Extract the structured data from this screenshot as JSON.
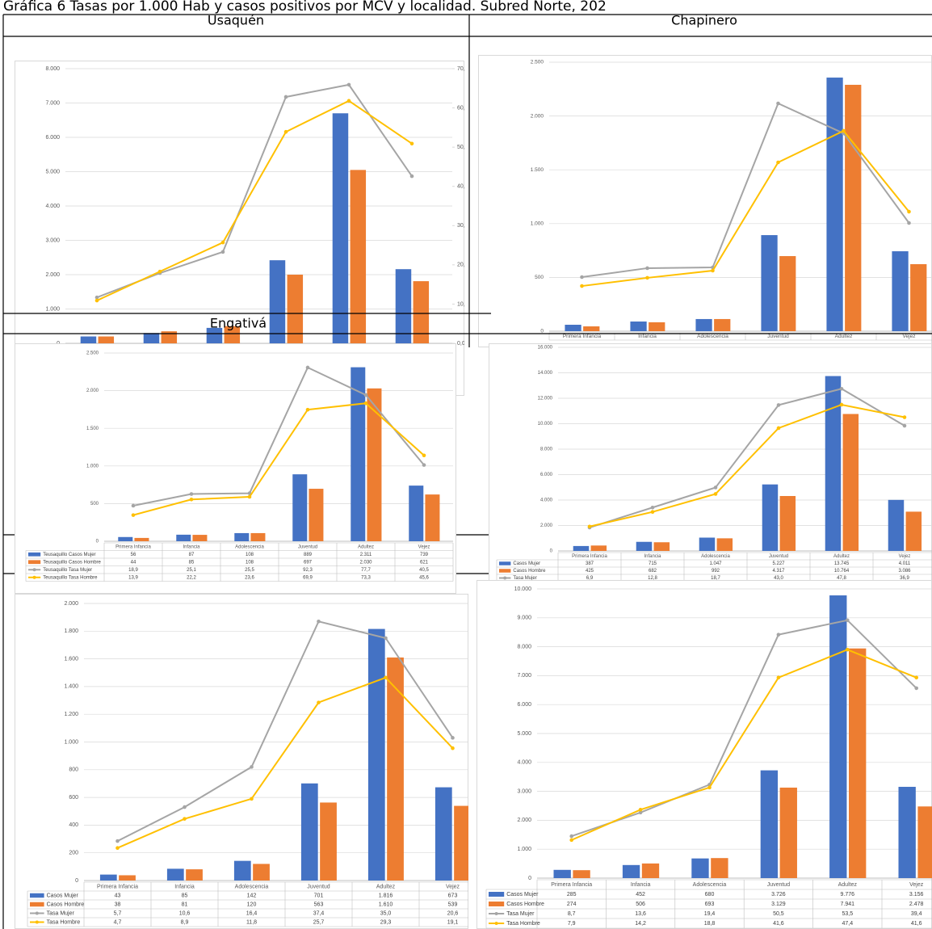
{
  "title": "Gráfica 6 Tasas por 1.000 Hab y casos positivos por MCV y localidad. Subred Norte, 202",
  "headers": {
    "usaquen": "Usaquén",
    "chapinero": "Chapinero",
    "engativa": "Engativá"
  },
  "chart_data": [
    {
      "type": "combo",
      "grid": true,
      "ylim": [
        0,
        8000
      ],
      "yticks": [
        0,
        {
          "value": 1000,
          "label": "1.000"
        },
        {
          "value": 2000,
          "label": "2.000"
        },
        {
          "value": 3000,
          "label": "3.000"
        },
        {
          "value": 4000,
          "label": "4.000"
        },
        {
          "value": 5000,
          "label": "5.000"
        },
        {
          "value": 6000,
          "label": "6.000"
        },
        {
          "value": 7000,
          "label": "7.000"
        },
        {
          "value": 8000,
          "label": "8.000"
        }
      ],
      "y2lim": [
        0,
        70
      ],
      "y2ticks": [
        {
          "value": 0,
          "label": "0,0"
        },
        {
          "value": 10,
          "label": "10,0"
        },
        {
          "value": 20,
          "label": "20,0"
        },
        {
          "value": 30,
          "label": "30,0"
        },
        {
          "value": 40,
          "label": "40,0"
        },
        {
          "value": 50,
          "label": "50,0"
        },
        {
          "value": 60,
          "label": "60,0"
        },
        {
          "value": 70,
          "label": "70,0"
        }
      ],
      "series": [
        {
          "type": "bar",
          "color": "#4472c4",
          "values": [
            200,
            300,
            450,
            2420,
            6700,
            2160
          ]
        },
        {
          "type": "bar",
          "color": "#ed7d31",
          "values": [
            200,
            350,
            500,
            2000,
            5050,
            1810
          ]
        },
        {
          "type": "line",
          "color": "#a5a5a5",
          "axis": "y2",
          "values": [
            11.7,
            17.9,
            23.3,
            62.8,
            65.9,
            42.6
          ]
        },
        {
          "type": "line",
          "color": "#ffc000",
          "axis": "y2",
          "values": [
            10.9,
            18.3,
            25.7,
            53.9,
            61.8,
            50.9
          ]
        }
      ]
    },
    {
      "type": "combo",
      "grid": true,
      "ylim": [
        0,
        2500
      ],
      "yticks": [
        0,
        500,
        {
          "value": 1000,
          "label": "1.000"
        },
        {
          "value": 1500,
          "label": "1.500"
        },
        {
          "value": 2000,
          "label": "2.000"
        },
        {
          "value": 2500,
          "label": "2.500"
        }
      ],
      "categories": [
        "Primera Infancia",
        "Infancia",
        "Adolescencia",
        "Juventud",
        "Adultez",
        "Vejez"
      ],
      "series": [
        {
          "type": "bar",
          "color": "#4472c4",
          "values": [
            60,
            90,
            113,
            893,
            2357,
            743
          ]
        },
        {
          "type": "bar",
          "color": "#ed7d31",
          "values": [
            45,
            83,
            113,
            698,
            2290,
            623
          ]
        },
        {
          "type": "line",
          "color": "#a5a5a5",
          "values": [
            503,
            586,
            593,
            2117,
            1839,
            1006
          ]
        },
        {
          "type": "line",
          "color": "#ffc000",
          "values": [
            420,
            496,
            563,
            1569,
            1862,
            1111
          ]
        }
      ]
    },
    {
      "type": "combo",
      "grid": true,
      "data_table": true,
      "ylim": [
        0,
        2500
      ],
      "y2lim": [
        0,
        100
      ],
      "yticks": [
        0,
        500,
        {
          "value": 1000,
          "label": "1.000"
        },
        {
          "value": 1500,
          "label": "1.500"
        },
        {
          "value": 2000,
          "label": "2.000"
        },
        {
          "value": 2500,
          "label": "2.500"
        }
      ],
      "categories": [
        "Primera Infancia",
        "Infancia",
        "Adolescencia",
        "Juventud",
        "Adultez",
        "Vejez"
      ],
      "series": [
        {
          "name": "Teusaquillo Casos Mujer",
          "type": "bar",
          "color": "#4472c4",
          "values": [
            56,
            87,
            108,
            889,
            2311,
            739
          ],
          "value_labels": [
            "56",
            "87",
            "108",
            "889",
            "2.311",
            "739"
          ]
        },
        {
          "name": "Teusaquillo Casos Hombre",
          "type": "bar",
          "color": "#ed7d31",
          "values": [
            44,
            85,
            108,
            697,
            2030,
            621
          ],
          "value_labels": [
            "44",
            "85",
            "108",
            "697",
            "2.030",
            "621"
          ]
        },
        {
          "name": "Teusaquillo Tasa Mujer",
          "type": "line",
          "axis": "y2",
          "color": "#a5a5a5",
          "values": [
            18.9,
            25.1,
            25.5,
            92.3,
            77.7,
            40.5
          ],
          "value_labels": [
            "18,9",
            "25,1",
            "25,5",
            "92,3",
            "77,7",
            "40,5"
          ]
        },
        {
          "name": "Teusaquillo Tasa Hombre",
          "type": "line",
          "axis": "y2",
          "color": "#ffc000",
          "values": [
            13.9,
            22.2,
            23.6,
            69.9,
            73.3,
            45.6
          ],
          "value_labels": [
            "13,9",
            "22,2",
            "23,6",
            "69,9",
            "73,3",
            "45,6"
          ]
        }
      ]
    },
    {
      "type": "combo",
      "grid": true,
      "data_table": true,
      "ylim": [
        0,
        16000
      ],
      "y2lim": [
        0,
        60
      ],
      "yticks": [
        0,
        {
          "value": 2000,
          "label": "2.000"
        },
        {
          "value": 4000,
          "label": "4.000"
        },
        {
          "value": 6000,
          "label": "6.000"
        },
        {
          "value": 8000,
          "label": "8.000"
        },
        {
          "value": 10000,
          "label": "10.000"
        },
        {
          "value": 12000,
          "label": "12.000"
        },
        {
          "value": 14000,
          "label": "14.000"
        },
        {
          "value": 16000,
          "label": "16.000"
        }
      ],
      "categories": [
        "Primera Infancia",
        "Infancia",
        "Adolescencia",
        "Juventud",
        "Adultez",
        "Vejez"
      ],
      "series": [
        {
          "name": "Casos Mujer",
          "type": "bar",
          "color": "#4472c4",
          "values": [
            387,
            715,
            1047,
            5227,
            13745,
            4011
          ],
          "value_labels": [
            "387",
            "715",
            "1.047",
            "5.227",
            "13.745",
            "4.011"
          ]
        },
        {
          "name": "Casos Hombre",
          "type": "bar",
          "color": "#ed7d31",
          "values": [
            425,
            682,
            992,
            4317,
            10764,
            3086
          ],
          "value_labels": [
            "425",
            "682",
            "992",
            "4.317",
            "10.764",
            "3.086"
          ]
        },
        {
          "name": "Tasa Mujer",
          "type": "line",
          "axis": "y2",
          "color": "#a5a5a5",
          "values": [
            6.9,
            12.8,
            18.7,
            43.0,
            47.8,
            36.9
          ],
          "value_labels": [
            "6,9",
            "12,8",
            "18,7",
            "43,0",
            "47,8",
            "36,9"
          ]
        },
        {
          "name": "Tasa Hombre",
          "type": "line",
          "axis": "y2",
          "color": "#ffc000",
          "values": [
            7.2,
            11.5,
            16.8,
            36.2,
            43.1,
            39.4
          ],
          "value_labels": [
            "7,2",
            "11,5",
            "16,8",
            "36,2",
            "43,1",
            "39,4"
          ]
        }
      ]
    },
    {
      "type": "combo",
      "grid": true,
      "data_table": true,
      "ylim": [
        0,
        2000
      ],
      "y2lim": [
        0,
        40
      ],
      "yticks": [
        0,
        200,
        400,
        600,
        800,
        {
          "value": 1000,
          "label": "1.000"
        },
        {
          "value": 1200,
          "label": "1.200"
        },
        {
          "value": 1400,
          "label": "1.400"
        },
        {
          "value": 1600,
          "label": "1.600"
        },
        {
          "value": 1800,
          "label": "1.800"
        },
        {
          "value": 2000,
          "label": "2.000"
        }
      ],
      "categories": [
        "Primera Infancia",
        "Infancia",
        "Adolescencia",
        "Juventud",
        "Adultez",
        "Vejez"
      ],
      "series": [
        {
          "name": "Casos Mujer",
          "type": "bar",
          "color": "#4472c4",
          "values": [
            43,
            85,
            142,
            701,
            1816,
            673
          ],
          "value_labels": [
            "43",
            "85",
            "142",
            "701",
            "1.816",
            "673"
          ]
        },
        {
          "name": "Casos Hombre",
          "type": "bar",
          "color": "#ed7d31",
          "values": [
            38,
            81,
            120,
            563,
            1610,
            539
          ],
          "value_labels": [
            "38",
            "81",
            "120",
            "563",
            "1.610",
            "539"
          ]
        },
        {
          "name": "Tasa Mujer",
          "type": "line",
          "axis": "y2",
          "color": "#a5a5a5",
          "values": [
            5.7,
            10.6,
            16.4,
            37.4,
            35.0,
            20.6
          ],
          "value_labels": [
            "5,7",
            "10,6",
            "16,4",
            "37,4",
            "35,0",
            "20,6"
          ]
        },
        {
          "name": "Tasa Hombre",
          "type": "line",
          "axis": "y2",
          "color": "#ffc000",
          "values": [
            4.7,
            8.9,
            11.8,
            25.7,
            29.3,
            19.1
          ],
          "value_labels": [
            "4,7",
            "8,9",
            "11,8",
            "25,7",
            "29,3",
            "19,1"
          ]
        }
      ]
    },
    {
      "type": "combo",
      "grid": true,
      "data_table": true,
      "ylim": [
        0,
        10000
      ],
      "y2lim": [
        0,
        60
      ],
      "yticks": [
        0,
        {
          "value": 1000,
          "label": "1.000"
        },
        {
          "value": 2000,
          "label": "2.000"
        },
        {
          "value": 3000,
          "label": "3.000"
        },
        {
          "value": 4000,
          "label": "4.000"
        },
        {
          "value": 5000,
          "label": "5.000"
        },
        {
          "value": 6000,
          "label": "6.000"
        },
        {
          "value": 7000,
          "label": "7.000"
        },
        {
          "value": 8000,
          "label": "8.000"
        },
        {
          "value": 9000,
          "label": "9.000"
        },
        {
          "value": 10000,
          "label": "10.000"
        }
      ],
      "categories": [
        "Primera Infancia",
        "Infancia",
        "Adolescencia",
        "Juventud",
        "Adultez",
        "Vejez"
      ],
      "series": [
        {
          "name": "Casos Mujer",
          "type": "bar",
          "color": "#4472c4",
          "values": [
            285,
            452,
            680,
            3726,
            9776,
            3156
          ],
          "value_labels": [
            "285",
            "452",
            "680",
            "3.726",
            "9.776",
            "3.156"
          ]
        },
        {
          "name": "Casos Hombre",
          "type": "bar",
          "color": "#ed7d31",
          "values": [
            274,
            506,
            693,
            3129,
            7941,
            2478
          ],
          "value_labels": [
            "274",
            "506",
            "693",
            "3.129",
            "7.941",
            "2.478"
          ]
        },
        {
          "name": "Tasa Mujer",
          "type": "line",
          "axis": "y2",
          "color": "#a5a5a5",
          "values": [
            8.7,
            13.6,
            19.4,
            50.5,
            53.5,
            39.4
          ],
          "value_labels": [
            "8,7",
            "13,6",
            "19,4",
            "50,5",
            "53,5",
            "39,4"
          ]
        },
        {
          "name": "Tasa Hombre",
          "type": "line",
          "axis": "y2",
          "color": "#ffc000",
          "values": [
            7.9,
            14.2,
            18.8,
            41.6,
            47.4,
            41.6
          ],
          "value_labels": [
            "7,9",
            "14,2",
            "18,8",
            "41,6",
            "47,4",
            "41,6"
          ]
        }
      ]
    }
  ]
}
